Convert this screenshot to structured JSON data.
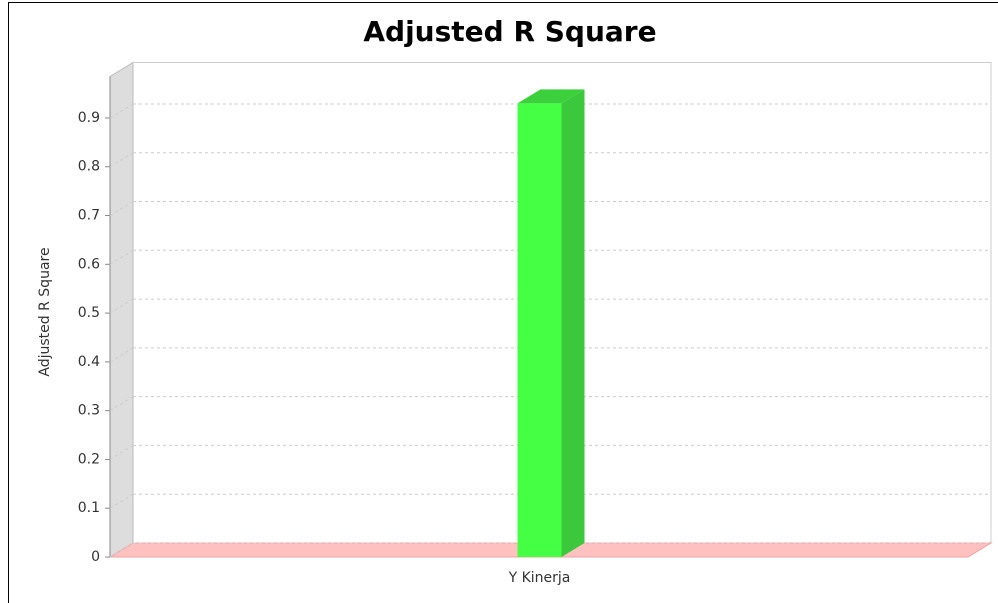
{
  "chart_data": {
    "type": "bar3d",
    "title": "Adjusted R Square",
    "y_label": "Adjusted R Square",
    "categories": [
      "Y Kinerja"
    ],
    "values": [
      0.93
    ],
    "color": "#44ff44",
    "ylim": [
      0,
      0.985
    ],
    "yticks": [
      0,
      0.1,
      0.2,
      0.3,
      0.4,
      0.5,
      0.6,
      0.7,
      0.8,
      0.9
    ],
    "grid": true
  }
}
